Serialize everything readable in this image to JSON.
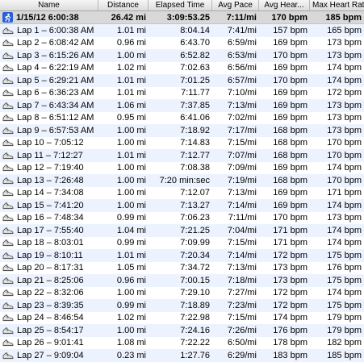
{
  "columns": {
    "name": "Name",
    "distance": "Distance",
    "elapsed_time": "Elapsed Time",
    "avg_pace": "Avg Pace",
    "avg_heart": "Avg Hear...",
    "max_heart": "Max Heart Rate"
  },
  "summary": {
    "name": "1/15/12 6:00:38",
    "distance": "26.42 mi",
    "elapsed": "3:09:53.25",
    "pace": "7:11/mi",
    "avg_hr": "170 bpm",
    "max_hr": "185 bpm",
    "icon": "runner-icon"
  },
  "laps": [
    {
      "name": "Lap 1 – 6:00:38 AM",
      "distance": "1.01 mi",
      "elapsed": "8:04.14",
      "pace": "7:41/mi",
      "avg_hr": "157 bpm",
      "max_hr": "165 bpm"
    },
    {
      "name": "Lap 2 – 6:08:42 AM",
      "distance": "0.96 mi",
      "elapsed": "6:43.70",
      "pace": "6:59/mi",
      "avg_hr": "169 bpm",
      "max_hr": "173 bpm"
    },
    {
      "name": "Lap 3 – 6:15:26 AM",
      "distance": "1.00 mi",
      "elapsed": "6:52.82",
      "pace": "6:53/mi",
      "avg_hr": "170 bpm",
      "max_hr": "173 bpm"
    },
    {
      "name": "Lap 4 – 6:22:19 AM",
      "distance": "1.02 mi",
      "elapsed": "7:02.63",
      "pace": "6:56/mi",
      "avg_hr": "169 bpm",
      "max_hr": "174 bpm"
    },
    {
      "name": "Lap 5 – 6:29:21 AM",
      "distance": "1.01 mi",
      "elapsed": "7:01.25",
      "pace": "6:57/mi",
      "avg_hr": "170 bpm",
      "max_hr": "174 bpm"
    },
    {
      "name": "Lap 6 – 6:36:23 AM",
      "distance": "1.01 mi",
      "elapsed": "7:11.77",
      "pace": "7:10/mi",
      "avg_hr": "169 bpm",
      "max_hr": "172 bpm"
    },
    {
      "name": "Lap 7 – 6:43:34 AM",
      "distance": "1.06 mi",
      "elapsed": "7:37.85",
      "pace": "7:13/mi",
      "avg_hr": "169 bpm",
      "max_hr": "173 bpm"
    },
    {
      "name": "Lap 8 – 6:51:12 AM",
      "distance": "0.95 mi",
      "elapsed": "6:41.06",
      "pace": "7:02/mi",
      "avg_hr": "169 bpm",
      "max_hr": "173 bpm"
    },
    {
      "name": "Lap 9 – 6:57:53 AM",
      "distance": "1.00 mi",
      "elapsed": "7:18.92",
      "pace": "7:17/mi",
      "avg_hr": "168 bpm",
      "max_hr": "173 bpm"
    },
    {
      "name": "Lap 10 – 7:05:12",
      "distance": "1.00 mi",
      "elapsed": "7:14.83",
      "pace": "7:15/mi",
      "avg_hr": "168 bpm",
      "max_hr": "170 bpm"
    },
    {
      "name": "Lap 11 – 7:12:27",
      "distance": "1.01 mi",
      "elapsed": "7:12.77",
      "pace": "7:07/mi",
      "avg_hr": "168 bpm",
      "max_hr": "170 bpm"
    },
    {
      "name": "Lap 12 – 7:19:40",
      "distance": "1.00 mi",
      "elapsed": "7:08.38",
      "pace": "7:09/mi",
      "avg_hr": "169 bpm",
      "max_hr": "174 bpm"
    },
    {
      "name": "Lap 13 – 7:26:48",
      "distance": "1.00 mi",
      "elapsed": "7:20 min:sec",
      "pace": "7:19/mi",
      "avg_hr": "168 bpm",
      "max_hr": "170 bpm"
    },
    {
      "name": "Lap 14 – 7:34:08",
      "distance": "1.00 mi",
      "elapsed": "7:12.07",
      "pace": "7:13/mi",
      "avg_hr": "169 bpm",
      "max_hr": "171 bpm"
    },
    {
      "name": "Lap 15 – 7:41:20",
      "distance": "1.00 mi",
      "elapsed": "7:13.27",
      "pace": "7:14/mi",
      "avg_hr": "169 bpm",
      "max_hr": "174 bpm"
    },
    {
      "name": "Lap 16 – 7:48:34",
      "distance": "0.99 mi",
      "elapsed": "7:06.23",
      "pace": "7:11/mi",
      "avg_hr": "170 bpm",
      "max_hr": "173 bpm"
    },
    {
      "name": "Lap 17 – 7:55:40",
      "distance": "1.04 mi",
      "elapsed": "7:21.25",
      "pace": "7:04/mi",
      "avg_hr": "171 bpm",
      "max_hr": "174 bpm"
    },
    {
      "name": "Lap 18 – 8:03:01",
      "distance": "0.99 mi",
      "elapsed": "7:09.99",
      "pace": "7:15/mi",
      "avg_hr": "171 bpm",
      "max_hr": "174 bpm"
    },
    {
      "name": "Lap 19 – 8:10:11",
      "distance": "1.01 mi",
      "elapsed": "7:20.34",
      "pace": "7:14/mi",
      "avg_hr": "172 bpm",
      "max_hr": "175 bpm"
    },
    {
      "name": "Lap 20 – 8:17:31",
      "distance": "1.05 mi",
      "elapsed": "7:34.72",
      "pace": "7:13/mi",
      "avg_hr": "173 bpm",
      "max_hr": "176 bpm"
    },
    {
      "name": "Lap 21 – 8:25:06",
      "distance": "0.96 mi",
      "elapsed": "7:00.15",
      "pace": "7:18/mi",
      "avg_hr": "173 bpm",
      "max_hr": "175 bpm"
    },
    {
      "name": "Lap 22 – 8:32:06",
      "distance": "1.00 mi",
      "elapsed": "7:29.10",
      "pace": "7:27/mi",
      "avg_hr": "172 bpm",
      "max_hr": "174 bpm"
    },
    {
      "name": "Lap 23 – 8:39:35",
      "distance": "0.99 mi",
      "elapsed": "7:18.89",
      "pace": "7:23/mi",
      "avg_hr": "172 bpm",
      "max_hr": "175 bpm"
    },
    {
      "name": "Lap 24 – 8:46:54",
      "distance": "1.02 mi",
      "elapsed": "7:22.98",
      "pace": "7:15/mi",
      "avg_hr": "174 bpm",
      "max_hr": "179 bpm"
    },
    {
      "name": "Lap 25 – 8:54:17",
      "distance": "1.00 mi",
      "elapsed": "7:24.16",
      "pace": "7:26/mi",
      "avg_hr": "176 bpm",
      "max_hr": "179 bpm"
    },
    {
      "name": "Lap 26 – 9:01:41",
      "distance": "1.08 mi",
      "elapsed": "7:22.22",
      "pace": "6:50/mi",
      "avg_hr": "178 bpm",
      "max_hr": "182 bpm"
    },
    {
      "name": "Lap 27 – 9:09:04",
      "distance": "0.23 mi",
      "elapsed": "1:27.76",
      "pace": "6:29/mi",
      "avg_hr": "183 bpm",
      "max_hr": "185 bpm"
    }
  ],
  "icons": {
    "lap": "lap-shoe-icon"
  },
  "colors": {
    "summary_icon": "#2a5fd6",
    "stripe": "#edf3fe",
    "summary_bg": "#d8d8d8"
  }
}
